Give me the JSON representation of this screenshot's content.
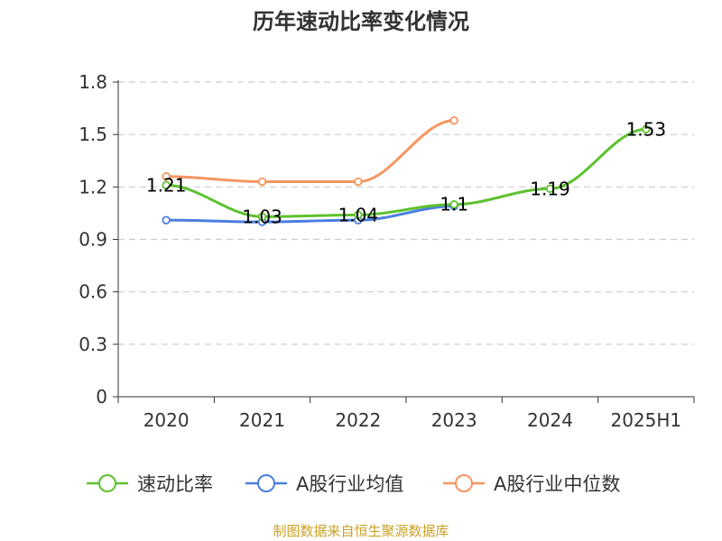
{
  "chart_data": {
    "type": "line",
    "title": "历年速动比率变化情况",
    "categories": [
      "2020",
      "2021",
      "2022",
      "2023",
      "2024",
      "2025H1"
    ],
    "ylim": [
      0,
      1.8
    ],
    "yticks": [
      "0",
      "0.3",
      "0.6",
      "0.9",
      "1.2",
      "1.5",
      "1.8"
    ],
    "grid": true,
    "legend_position": "bottom",
    "series": [
      {
        "name": "速动比率",
        "color": "#5ec12f",
        "values": [
          1.21,
          1.03,
          1.04,
          1.1,
          1.19,
          1.53
        ],
        "labels": [
          "1.21",
          "1.03",
          "1.04",
          "1.1",
          "1.19",
          "1.53"
        ]
      },
      {
        "name": "A股行业均值",
        "color": "#4a7ee0",
        "values": [
          1.01,
          1.0,
          1.01,
          1.09,
          null,
          null
        ]
      },
      {
        "name": "A股行业中位数",
        "color": "#f59660",
        "values": [
          1.26,
          1.23,
          1.23,
          1.58,
          null,
          null
        ]
      }
    ]
  },
  "source_note": "制图数据来自恒生聚源数据库"
}
